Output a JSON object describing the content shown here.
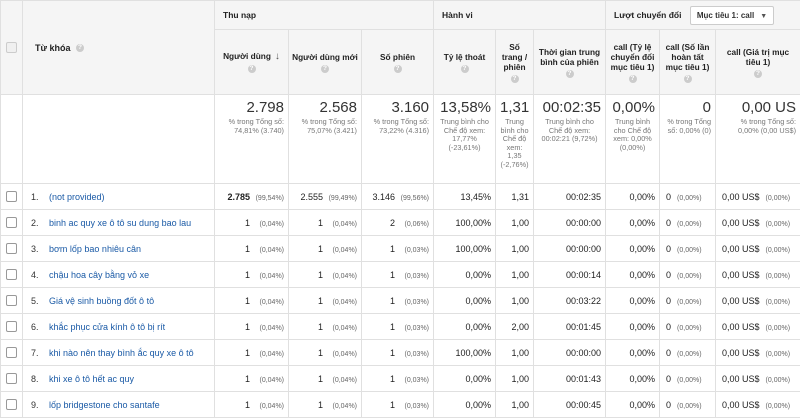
{
  "header": {
    "keyword_label": "Từ khóa",
    "help": "?",
    "groups": {
      "acquisition": "Thu nạp",
      "behavior": "Hành vi",
      "conversions": "Lượt chuyển đổi",
      "goal_select": "Mục tiêu 1: call"
    },
    "columns": {
      "users": "Người dùng",
      "new_users": "Người dùng mới",
      "sessions": "Số phiên",
      "bounce": "Tỷ lệ thoát",
      "pages": "Số trang / phiên",
      "duration": "Thời gian trung bình của phiên",
      "conv_rate": "call (Tỷ lệ chuyển đổi mục tiêu 1)",
      "completions": "call (Số lần hoàn tất mục tiêu 1)",
      "value": "call (Giá trị mục tiêu 1)"
    }
  },
  "totals": {
    "users": {
      "value": "2.798",
      "sub": "% trong Tổng số: 74,81% (3.740)"
    },
    "new_users": {
      "value": "2.568",
      "sub": "% trong Tổng số: 75,07% (3.421)"
    },
    "sessions": {
      "value": "3.160",
      "sub": "% trong Tổng số: 73,22% (4.316)"
    },
    "bounce": {
      "value": "13,58%",
      "sub": "Trung bình cho Chế độ xem: 17,77% (-23,61%)"
    },
    "pages": {
      "value": "1,31",
      "sub": "Trung bình cho Chế độ xem: 1,35 (-2,76%)"
    },
    "duration": {
      "value": "00:02:35",
      "sub": "Trung bình cho Chế độ xem: 00:02:21 (9,72%)"
    },
    "conv_rate": {
      "value": "0,00%",
      "sub": "Trung bình cho Chế độ xem: 0,00% (0,00%)"
    },
    "completions": {
      "value": "0",
      "sub": "% trong Tổng số: 0,00% (0)"
    },
    "value": {
      "value": "0,00 US",
      "sub": "% trong Tổng số: 0,00% (0,00 US$)"
    }
  },
  "rows": [
    {
      "num": "1.",
      "keyword": "(not provided)",
      "users": "2.785",
      "users_pct": "(99,54%)",
      "new_users": "2.555",
      "new_users_pct": "(99,49%)",
      "sessions": "3.146",
      "sessions_pct": "(99,56%)",
      "bounce": "13,45%",
      "pages": "1,31",
      "duration": "00:02:35",
      "conv_rate": "0,00%",
      "completions": "0",
      "completions_pct": "(0,00%)",
      "value": "0,00 US$",
      "value_pct": "(0,00%)"
    },
    {
      "num": "2.",
      "keyword": "binh ac quy xe ô tô su dung bao lau",
      "users": "1",
      "users_pct": "(0,04%)",
      "new_users": "1",
      "new_users_pct": "(0,04%)",
      "sessions": "2",
      "sessions_pct": "(0,06%)",
      "bounce": "100,00%",
      "pages": "1,00",
      "duration": "00:00:00",
      "conv_rate": "0,00%",
      "completions": "0",
      "completions_pct": "(0,00%)",
      "value": "0,00 US$",
      "value_pct": "(0,00%)"
    },
    {
      "num": "3.",
      "keyword": "bơm lốp bao nhiêu cân",
      "users": "1",
      "users_pct": "(0,04%)",
      "new_users": "1",
      "new_users_pct": "(0,04%)",
      "sessions": "1",
      "sessions_pct": "(0,03%)",
      "bounce": "100,00%",
      "pages": "1,00",
      "duration": "00:00:00",
      "conv_rate": "0,00%",
      "completions": "0",
      "completions_pct": "(0,00%)",
      "value": "0,00 US$",
      "value_pct": "(0,00%)"
    },
    {
      "num": "4.",
      "keyword": "chậu hoa cây bằng vỏ xe",
      "users": "1",
      "users_pct": "(0,04%)",
      "new_users": "1",
      "new_users_pct": "(0,04%)",
      "sessions": "1",
      "sessions_pct": "(0,03%)",
      "bounce": "0,00%",
      "pages": "1,00",
      "duration": "00:00:14",
      "conv_rate": "0,00%",
      "completions": "0",
      "completions_pct": "(0,00%)",
      "value": "0,00 US$",
      "value_pct": "(0,00%)"
    },
    {
      "num": "5.",
      "keyword": "Giá vệ sinh buồng đốt ô tô",
      "users": "1",
      "users_pct": "(0,04%)",
      "new_users": "1",
      "new_users_pct": "(0,04%)",
      "sessions": "1",
      "sessions_pct": "(0,03%)",
      "bounce": "0,00%",
      "pages": "1,00",
      "duration": "00:03:22",
      "conv_rate": "0,00%",
      "completions": "0",
      "completions_pct": "(0,00%)",
      "value": "0,00 US$",
      "value_pct": "(0,00%)"
    },
    {
      "num": "6.",
      "keyword": "khắc phục cửa kính ô tô bị rít",
      "users": "1",
      "users_pct": "(0,04%)",
      "new_users": "1",
      "new_users_pct": "(0,04%)",
      "sessions": "1",
      "sessions_pct": "(0,03%)",
      "bounce": "0,00%",
      "pages": "2,00",
      "duration": "00:01:45",
      "conv_rate": "0,00%",
      "completions": "0",
      "completions_pct": "(0,00%)",
      "value": "0,00 US$",
      "value_pct": "(0,00%)"
    },
    {
      "num": "7.",
      "keyword": "khi nào nên thay bình ắc quy xe ô tô",
      "users": "1",
      "users_pct": "(0,04%)",
      "new_users": "1",
      "new_users_pct": "(0,04%)",
      "sessions": "1",
      "sessions_pct": "(0,03%)",
      "bounce": "100,00%",
      "pages": "1,00",
      "duration": "00:00:00",
      "conv_rate": "0,00%",
      "completions": "0",
      "completions_pct": "(0,00%)",
      "value": "0,00 US$",
      "value_pct": "(0,00%)"
    },
    {
      "num": "8.",
      "keyword": "khi xe ô tô hết ac quy",
      "users": "1",
      "users_pct": "(0,04%)",
      "new_users": "1",
      "new_users_pct": "(0,04%)",
      "sessions": "1",
      "sessions_pct": "(0,03%)",
      "bounce": "0,00%",
      "pages": "1,00",
      "duration": "00:01:43",
      "conv_rate": "0,00%",
      "completions": "0",
      "completions_pct": "(0,00%)",
      "value": "0,00 US$",
      "value_pct": "(0,00%)"
    },
    {
      "num": "9.",
      "keyword": "lốp bridgestone cho santafe",
      "users": "1",
      "users_pct": "(0,04%)",
      "new_users": "1",
      "new_users_pct": "(0,04%)",
      "sessions": "1",
      "sessions_pct": "(0,03%)",
      "bounce": "0,00%",
      "pages": "1,00",
      "duration": "00:00:45",
      "conv_rate": "0,00%",
      "completions": "0",
      "completions_pct": "(0,00%)",
      "value": "0,00 US$",
      "value_pct": "(0,00%)"
    }
  ]
}
